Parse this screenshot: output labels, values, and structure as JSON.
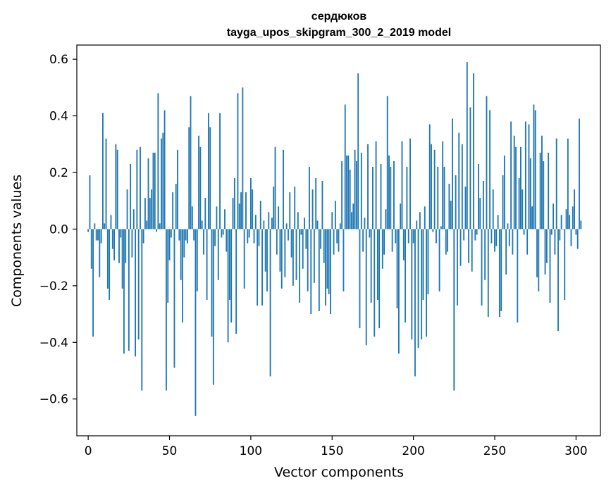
{
  "chart_data": {
    "type": "bar",
    "title_line1": "сердюков",
    "title_line2": "tayga_upos_skipgram_300_2_2019 model",
    "xlabel": "Vector components",
    "ylabel": "Components values",
    "xlim": [
      -7,
      315
    ],
    "ylim": [
      -0.73,
      0.65
    ],
    "xticks": [
      0,
      50,
      100,
      150,
      200,
      250,
      300
    ],
    "xtick_labels": [
      "0",
      "50",
      "100",
      "150",
      "200",
      "250",
      "300"
    ],
    "yticks": [
      -0.6,
      -0.4,
      -0.2,
      0.0,
      0.2,
      0.4,
      0.6
    ],
    "ytick_labels": [
      "−0.6",
      "−0.4",
      "−0.2",
      "0.0",
      "0.2",
      "0.4",
      "0.6"
    ],
    "bar_color": "#1f77b4",
    "values": [
      -0.01,
      0.19,
      -0.14,
      -0.38,
      0.02,
      -0.04,
      -0.04,
      -0.17,
      -0.05,
      0.41,
      0.02,
      0.32,
      -0.21,
      -0.25,
      0.05,
      -0.07,
      -0.11,
      0.3,
      0.28,
      -0.12,
      -0.03,
      -0.21,
      -0.44,
      -0.12,
      0.14,
      -0.43,
      0.23,
      -0.1,
      0.07,
      -0.45,
      0.28,
      -0.39,
      0.29,
      -0.57,
      -0.05,
      0.11,
      0.03,
      0.25,
      0.11,
      0.14,
      0.27,
      0.27,
      -0.01,
      0.48,
      0.02,
      0.32,
      0.34,
      0.42,
      -0.57,
      -0.26,
      -0.11,
      -0.03,
      0.13,
      -0.49,
      0.16,
      0.28,
      -0.04,
      -0.18,
      -0.33,
      -0.1,
      -0.04,
      -0.05,
      0.36,
      0.47,
      0.08,
      -0.04,
      -0.66,
      -0.22,
      0.33,
      0.29,
      0.03,
      -0.09,
      0.11,
      -0.25,
      0.41,
      0.36,
      -0.38,
      -0.55,
      -0.06,
      0.08,
      -0.18,
      0.41,
      -0.03,
      -0.02,
      0.07,
      -0.08,
      -0.4,
      -0.25,
      -0.33,
      0.11,
      0.18,
      -0.37,
      0.48,
      0.09,
      0.13,
      0.5,
      -0.21,
      0.13,
      -0.05,
      -0.03,
      0.18,
      0.14,
      -0.05,
      0.05,
      -0.27,
      -0.06,
      0.1,
      -0.27,
      0.03,
      -0.15,
      -0.22,
      0.06,
      -0.52,
      0.04,
      0.15,
      0.29,
      -0.09,
      0.08,
      -0.15,
      -0.21,
      0.28,
      -0.17,
      0.02,
      -0.04,
      0.13,
      -0.1,
      -0.2,
      0.15,
      -0.18,
      0.06,
      -0.26,
      -0.02,
      -0.14,
      0.04,
      -0.07,
      -0.22,
      0.22,
      -0.3,
      0.14,
      -0.19,
      0.18,
      0.03,
      -0.29,
      -0.07,
      0.17,
      -0.12,
      -0.27,
      -0.21,
      -0.23,
      -0.3,
      0.06,
      -0.09,
      0.1,
      -0.05,
      -0.08,
      0.02,
      0.24,
      -0.22,
      0.44,
      0.26,
      0.26,
      0.21,
      0.06,
      0.09,
      0.28,
      0.24,
      0.55,
      -0.35,
      0.27,
      -0.08,
      0.04,
      -0.41,
      0.3,
      -0.03,
      -0.26,
      0.22,
      -0.38,
      0.31,
      -0.25,
      -0.35,
      0.23,
      -0.14,
      -0.09,
      0.07,
      0.47,
      0.26,
      0.22,
      -0.08,
      0.24,
      -0.05,
      -0.28,
      -0.44,
      0.09,
      0.31,
      -0.11,
      -0.33,
      0.22,
      -0.05,
      0.32,
      -0.39,
      -0.05,
      -0.52,
      0.03,
      -0.42,
      0.06,
      -0.39,
      -0.25,
      0.08,
      -0.38,
      -0.23,
      0.37,
      0.3,
      -0.01,
      0.28,
      -0.05,
      0.22,
      -0.22,
      0.01,
      0.31,
      0.22,
      -0.09,
      -0.08,
      0.16,
      0.1,
      0.39,
      -0.57,
      0.19,
      -0.27,
      0.34,
      -0.13,
      0.3,
      -0.04,
      0.15,
      0.59,
      -0.12,
      0.43,
      -0.15,
      0.55,
      -0.04,
      -0.02,
      0.23,
      0.11,
      -0.27,
      0.17,
      -0.18,
      0.47,
      -0.31,
      0.42,
      -0.05,
      0.14,
      -0.08,
      -0.06,
      0.05,
      -0.31,
      -0.29,
      0.19,
      0.26,
      -0.16,
      0.02,
      -0.06,
      0.38,
      -0.09,
      0.33,
      0.29,
      -0.33,
      0.18,
      0.29,
      0.14,
      -0.02,
      0.38,
      -0.09,
      0.37,
      0.25,
      0.08,
      0.44,
      0.42,
      -0.17,
      -0.22,
      0.27,
      0.33,
      0.24,
      -0.16,
      -0.12,
      0.27,
      -0.26,
      -0.02,
      0.09,
      -0.09,
      0.32,
      -0.36,
      -0.04,
      0.05,
      0.0,
      -0.25,
      0.07,
      0.32,
      0.05,
      -0.06,
      0.08,
      0.14,
      -0.02,
      -0.07,
      0.39,
      0.03
    ]
  }
}
